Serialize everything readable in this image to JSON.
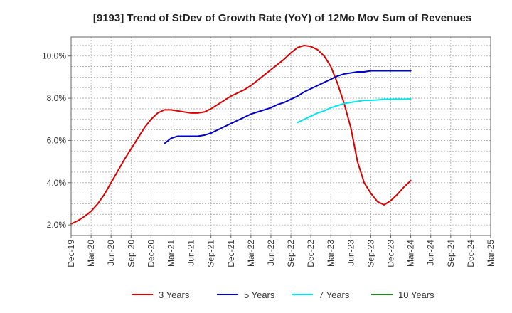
{
  "chart_data": {
    "type": "line",
    "title": "[9193]  Trend of StDev of Growth Rate (YoY) of 12Mo Mov Sum of Revenues",
    "xlabel": "",
    "ylabel": "",
    "ylim": [
      1.5,
      10.9
    ],
    "y_ticks": [
      2.0,
      4.0,
      6.0,
      8.0,
      10.0
    ],
    "y_tick_labels": [
      "2.0%",
      "4.0%",
      "6.0%",
      "8.0%",
      "10.0%"
    ],
    "x_tick_labels": [
      "Dec-19",
      "Mar-20",
      "Jun-20",
      "Sep-20",
      "Dec-20",
      "Mar-21",
      "Jun-21",
      "Sep-21",
      "Dec-21",
      "Mar-22",
      "Jun-22",
      "Sep-22",
      "Dec-22",
      "Mar-23",
      "Jun-23",
      "Sep-23",
      "Dec-23",
      "Mar-24",
      "Jun-24",
      "Sep-24",
      "Dec-24",
      "Mar-25"
    ],
    "grid": true,
    "legend_position": "bottom",
    "series": [
      {
        "name": "3 Years",
        "color": "#dd0000",
        "start_index": 0,
        "values": [
          2.05,
          2.2,
          2.4,
          2.65,
          3.0,
          3.45,
          4.0,
          4.55,
          5.1,
          5.6,
          6.1,
          6.6,
          7.0,
          7.3,
          7.45,
          7.45,
          7.4,
          7.35,
          7.3,
          7.3,
          7.35,
          7.5,
          7.7,
          7.9,
          8.1,
          8.25,
          8.4,
          8.6,
          8.85,
          9.1,
          9.35,
          9.6,
          9.85,
          10.15,
          10.4,
          10.5,
          10.45,
          10.3,
          10.0,
          9.5,
          8.7,
          7.75,
          6.6,
          5.0,
          4.0,
          3.5,
          3.1,
          2.95,
          3.15,
          3.45,
          3.8,
          4.1
        ]
      },
      {
        "name": "5 Years",
        "color": "#0000cc",
        "start_index": 14,
        "values": [
          5.85,
          6.1,
          6.2,
          6.2,
          6.2,
          6.2,
          6.25,
          6.35,
          6.5,
          6.65,
          6.8,
          6.95,
          7.1,
          7.25,
          7.35,
          7.45,
          7.55,
          7.7,
          7.8,
          7.95,
          8.1,
          8.3,
          8.45,
          8.6,
          8.75,
          8.9,
          9.05,
          9.15,
          9.2,
          9.25,
          9.25,
          9.3,
          9.3,
          9.3,
          9.3,
          9.3,
          9.3,
          9.3
        ]
      },
      {
        "name": "7 Years",
        "color": "#00e5ee",
        "start_index": 34,
        "values": [
          6.85,
          7.0,
          7.15,
          7.3,
          7.4,
          7.55,
          7.65,
          7.75,
          7.8,
          7.85,
          7.9,
          7.9,
          7.92,
          7.95,
          7.95,
          7.95,
          7.95,
          7.97
        ]
      },
      {
        "name": "10 Years",
        "color": "#228822",
        "start_index": 0,
        "values": []
      }
    ]
  }
}
